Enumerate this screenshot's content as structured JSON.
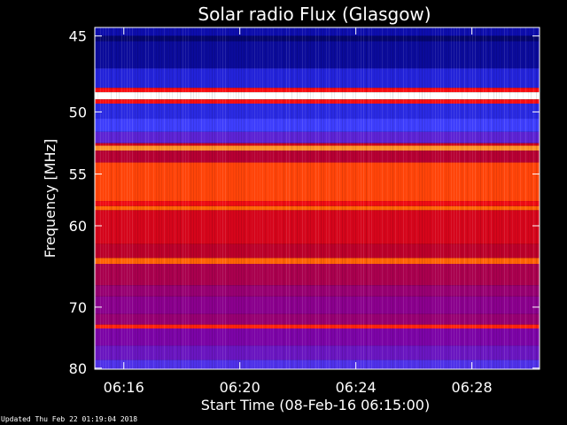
{
  "chart_data": {
    "type": "heatmap",
    "title": "Solar radio Flux (Glasgow)",
    "xlabel": "Start Time (08-Feb-16 06:15:00)",
    "ylabel": "Frequency [MHz]",
    "x_range": [
      "06:15:00",
      "06:30:20"
    ],
    "x_ticks": [
      "06:16",
      "06:20",
      "06:24",
      "06:28"
    ],
    "y_range": [
      44.5,
      80.2
    ],
    "y_ticks": [
      45,
      50,
      55,
      60,
      70,
      80
    ],
    "y_scale": "reciprocal",
    "colormap": [
      "#000040",
      "#1010c0",
      "#4040ff",
      "#8000a0",
      "#c00020",
      "#ff1010",
      "#ff8000",
      "#ffffff"
    ],
    "bands": [
      {
        "from": 44.5,
        "to": 45.0,
        "level": 0.12
      },
      {
        "from": 45.0,
        "to": 45.3,
        "level": 0.05
      },
      {
        "from": 45.3,
        "to": 47.0,
        "level": 0.1
      },
      {
        "from": 47.0,
        "to": 48.3,
        "level": 0.2
      },
      {
        "from": 48.3,
        "to": 48.6,
        "level": 0.7
      },
      {
        "from": 48.6,
        "to": 49.1,
        "level": 1.0
      },
      {
        "from": 49.1,
        "to": 49.4,
        "level": 0.7
      },
      {
        "from": 49.4,
        "to": 50.5,
        "level": 0.22
      },
      {
        "from": 50.5,
        "to": 51.5,
        "level": 0.28
      },
      {
        "from": 51.5,
        "to": 52.4,
        "level": 0.35
      },
      {
        "from": 52.4,
        "to": 52.6,
        "level": 0.6
      },
      {
        "from": 52.6,
        "to": 53.0,
        "level": 0.88
      },
      {
        "from": 53.0,
        "to": 54.0,
        "level": 0.55
      },
      {
        "from": 54.0,
        "to": 57.5,
        "level": 0.78
      },
      {
        "from": 57.5,
        "to": 58.0,
        "level": 0.68
      },
      {
        "from": 58.0,
        "to": 58.4,
        "level": 0.82
      },
      {
        "from": 58.4,
        "to": 62.0,
        "level": 0.62
      },
      {
        "from": 62.0,
        "to": 63.6,
        "level": 0.56
      },
      {
        "from": 63.6,
        "to": 64.3,
        "level": 0.82
      },
      {
        "from": 64.3,
        "to": 67.0,
        "level": 0.52
      },
      {
        "from": 67.0,
        "to": 68.5,
        "level": 0.48
      },
      {
        "from": 68.5,
        "to": 71.0,
        "level": 0.45
      },
      {
        "from": 71.0,
        "to": 72.6,
        "level": 0.48
      },
      {
        "from": 72.6,
        "to": 73.2,
        "level": 0.74
      },
      {
        "from": 73.2,
        "to": 76.0,
        "level": 0.42
      },
      {
        "from": 76.0,
        "to": 78.5,
        "level": 0.38
      },
      {
        "from": 78.5,
        "to": 80.2,
        "level": 0.32
      }
    ]
  },
  "footer": {
    "updated": "Updated Thu Feb 22 01:19:04 2018"
  }
}
